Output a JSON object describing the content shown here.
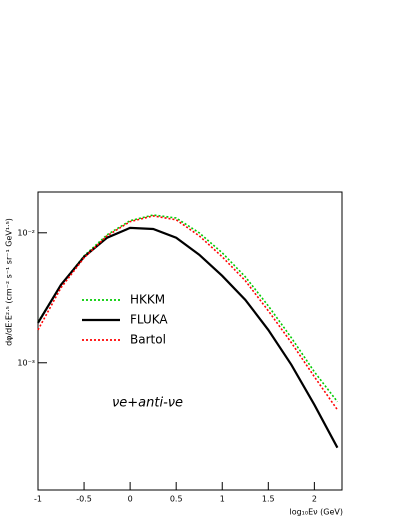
{
  "chart_data": {
    "type": "line",
    "x_label": "log₁₀Eν (GeV)",
    "y_label": "dφ/dE·E²·⁵ (cm⁻² s⁻¹ sr⁻¹ GeV¹·⁵)",
    "annotation": "νe+anti-νe",
    "x": [
      -1,
      -0.75,
      -0.5,
      -0.25,
      0,
      0.25,
      0.5,
      0.75,
      1,
      1.25,
      1.5,
      1.75,
      2,
      2.25
    ],
    "xlim": [
      -1,
      2.3
    ],
    "xticks": [
      -1,
      -0.5,
      0,
      0.5,
      1,
      1.5,
      2
    ],
    "ylim": [
      0.000105,
      0.0206
    ],
    "yticks": [
      {
        "value": 0.01,
        "label": "10⁻²"
      },
      {
        "value": 0.001,
        "label": "10⁻³"
      }
    ],
    "log_y": true,
    "legend": "left",
    "series": [
      {
        "name": "HKKM",
        "color": "#00cc00",
        "style": "dotted",
        "values": [
          0.00206,
          0.00398,
          0.00665,
          0.00965,
          0.0124,
          0.0137,
          0.013,
          0.01,
          0.00702,
          0.00459,
          0.00274,
          0.00156,
          0.00085,
          0.000502
        ]
      },
      {
        "name": "FLUKA",
        "color": "#000000",
        "style": "solid",
        "values": [
          0.00203,
          0.00398,
          0.00654,
          0.00916,
          0.0109,
          0.0107,
          0.00916,
          0.00678,
          0.00467,
          0.00305,
          0.00179,
          0.000966,
          0.000475,
          0.000222
        ]
      },
      {
        "name": "Bartol",
        "color": "#ff0000",
        "style": "dotted",
        "values": [
          0.00179,
          0.00378,
          0.00642,
          0.00948,
          0.0122,
          0.0135,
          0.0126,
          0.00948,
          0.00654,
          0.00428,
          0.00251,
          0.00143,
          0.00078,
          0.000435
        ]
      }
    ]
  }
}
